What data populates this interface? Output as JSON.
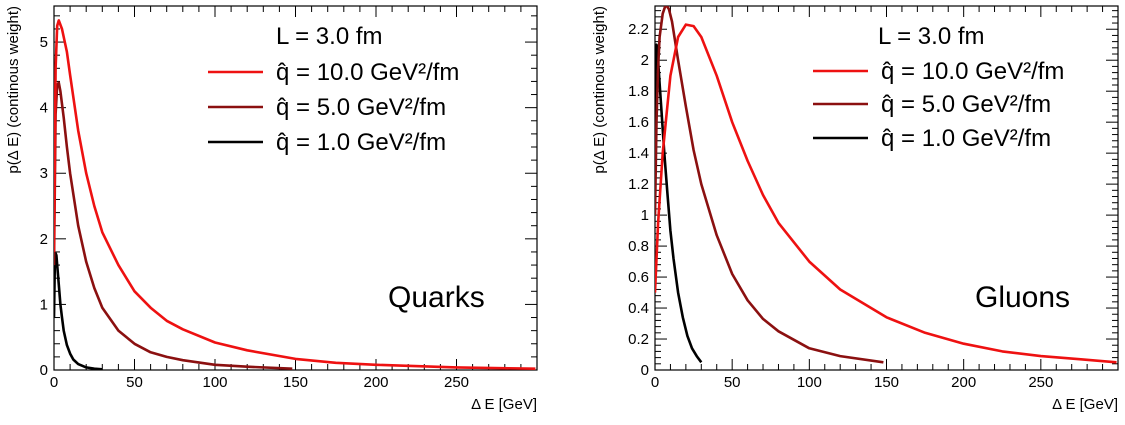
{
  "chart_data": [
    {
      "type": "line",
      "title": "",
      "panel_label": "Quarks",
      "xlabel": "Δ E [GeV]",
      "ylabel": "p(Δ E) (continous weight)",
      "xlim": [
        0,
        300
      ],
      "ylim": [
        0,
        5.55
      ],
      "xticks": [
        0,
        50,
        100,
        150,
        200,
        250
      ],
      "yticks": [
        0,
        1,
        2,
        3,
        4,
        5
      ],
      "legend": {
        "header": "L = 3.0 fm",
        "entries": [
          "q̂ = 10.0 GeV²/fm",
          "q̂ = 5.0 GeV²/fm",
          "q̂ = 1.0 GeV²/fm"
        ],
        "placement": "top-right"
      },
      "series": [
        {
          "name": "q̂ = 10.0 GeV²/fm",
          "color": "#ee1111",
          "x": [
            0,
            1,
            2,
            3,
            5,
            8,
            10,
            15,
            20,
            25,
            30,
            40,
            50,
            60,
            70,
            80,
            100,
            120,
            150,
            175,
            200,
            250,
            299
          ],
          "y": [
            1.8,
            4.6,
            5.25,
            5.33,
            5.2,
            4.85,
            4.5,
            3.65,
            3.0,
            2.5,
            2.1,
            1.6,
            1.2,
            0.95,
            0.75,
            0.62,
            0.42,
            0.3,
            0.17,
            0.11,
            0.08,
            0.04,
            0.02
          ]
        },
        {
          "name": "q̂ = 5.0 GeV²/fm",
          "color": "#8b1010",
          "x": [
            0,
            1,
            2,
            3,
            4,
            6,
            8,
            10,
            15,
            20,
            25,
            30,
            40,
            50,
            60,
            70,
            80,
            100,
            120,
            148
          ],
          "y": [
            1.6,
            3.9,
            4.35,
            4.38,
            4.25,
            3.85,
            3.4,
            3.0,
            2.2,
            1.65,
            1.25,
            0.95,
            0.6,
            0.4,
            0.27,
            0.2,
            0.15,
            0.08,
            0.05,
            0.02
          ]
        },
        {
          "name": "q̂ = 1.0 GeV²/fm",
          "color": "#000000",
          "x": [
            0,
            0.5,
            1,
            1.5,
            2,
            3,
            4,
            5,
            6,
            8,
            10,
            12,
            15,
            20,
            25,
            30
          ],
          "y": [
            0.8,
            1.6,
            1.78,
            1.75,
            1.6,
            1.3,
            1.0,
            0.8,
            0.6,
            0.38,
            0.25,
            0.16,
            0.09,
            0.04,
            0.02,
            0.01
          ]
        }
      ]
    },
    {
      "type": "line",
      "title": "",
      "panel_label": "Gluons",
      "xlabel": "Δ E [GeV]",
      "ylabel": "p(Δ E) (continous weight)",
      "xlim": [
        0,
        300
      ],
      "ylim": [
        0,
        2.35
      ],
      "xticks": [
        0,
        50,
        100,
        150,
        200,
        250
      ],
      "yticks": [
        0,
        0.2,
        0.4,
        0.6,
        0.8,
        1,
        1.2,
        1.4,
        1.6,
        1.8,
        2,
        2.2
      ],
      "legend": {
        "header": "L = 3.0 fm",
        "entries": [
          "q̂ = 10.0 GeV²/fm",
          "q̂ = 5.0 GeV²/fm",
          "q̂ = 1.0 GeV²/fm"
        ],
        "placement": "top-right"
      },
      "series": [
        {
          "name": "q̂ = 10.0 GeV²/fm",
          "color": "#ee1111",
          "x": [
            0,
            2,
            5,
            10,
            15,
            20,
            25,
            30,
            40,
            50,
            60,
            70,
            80,
            100,
            120,
            150,
            175,
            200,
            225,
            250,
            275,
            299
          ],
          "y": [
            0.5,
            0.95,
            1.4,
            1.9,
            2.15,
            2.23,
            2.22,
            2.15,
            1.9,
            1.6,
            1.35,
            1.13,
            0.95,
            0.7,
            0.52,
            0.34,
            0.24,
            0.17,
            0.12,
            0.09,
            0.07,
            0.05
          ]
        },
        {
          "name": "q̂ = 5.0 GeV²/fm",
          "color": "#8b1010",
          "x": [
            0,
            1,
            2,
            3,
            5,
            7,
            9,
            11,
            15,
            20,
            25,
            30,
            40,
            50,
            60,
            70,
            80,
            100,
            120,
            148
          ],
          "y": [
            1.0,
            1.6,
            1.95,
            2.15,
            2.3,
            2.36,
            2.33,
            2.25,
            2.0,
            1.7,
            1.42,
            1.2,
            0.87,
            0.62,
            0.45,
            0.33,
            0.25,
            0.14,
            0.09,
            0.05
          ]
        },
        {
          "name": "q̂ = 1.0 GeV²/fm",
          "color": "#000000",
          "x": [
            0,
            0.5,
            1,
            1.5,
            2,
            3,
            4,
            6,
            8,
            10,
            12,
            15,
            18,
            21,
            24,
            27,
            30
          ],
          "y": [
            1.6,
            2.0,
            2.1,
            2.08,
            2.0,
            1.85,
            1.7,
            1.4,
            1.15,
            0.9,
            0.72,
            0.5,
            0.34,
            0.22,
            0.14,
            0.09,
            0.05
          ]
        }
      ]
    }
  ]
}
